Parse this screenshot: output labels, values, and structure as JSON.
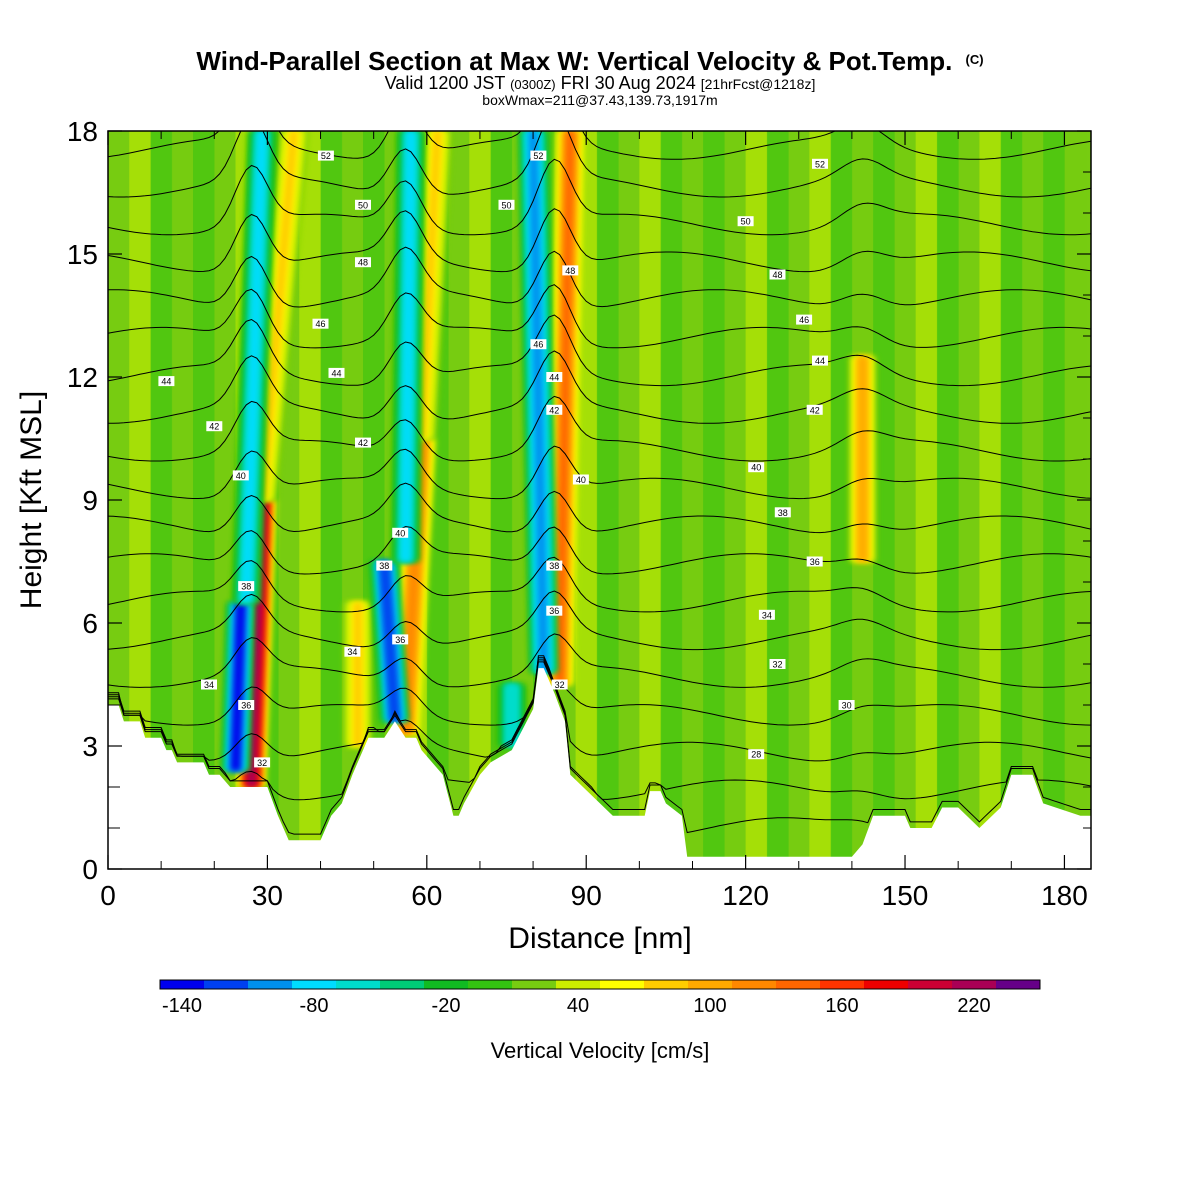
{
  "header": {
    "title": "Wind-Parallel Section at Max W: Vertical Velocity & Pot.Temp.",
    "title_mark": "(C)",
    "subtitle_a": "Valid 1200 JST",
    "subtitle_b": "(0300Z)",
    "subtitle_c": "FRI 30 Aug 2024",
    "subtitle_d": "[21hrFcst@1218z]",
    "info": "boxWmax=211@37.43,139.73,1917m"
  },
  "chart_data": {
    "type": "heatmap",
    "xlabel": "Distance [nm]",
    "ylabel": "Height [Kft MSL]",
    "xlim": [
      0,
      185
    ],
    "ylim": [
      0,
      18
    ],
    "x_ticks": [
      "0",
      "30",
      "60",
      "90",
      "120",
      "150",
      "180"
    ],
    "x_tick_values": [
      0,
      30,
      60,
      90,
      120,
      150,
      180
    ],
    "y_ticks": [
      "0",
      "3",
      "6",
      "9",
      "12",
      "15",
      "18"
    ],
    "y_tick_values": [
      0,
      3,
      6,
      9,
      12,
      15,
      18
    ],
    "colorbar": {
      "label": "Vertical Velocity [cm/s]",
      "tick_labels": [
        "-140",
        "-80",
        "-20",
        "40",
        "100",
        "160",
        "220"
      ],
      "tick_values": [
        -140,
        -80,
        -20,
        40,
        100,
        160,
        220
      ],
      "min": -150,
      "max": 250,
      "colors": [
        "#0000ee",
        "#0040f0",
        "#0090ee",
        "#00ddff",
        "#00ddcc",
        "#00cc77",
        "#11bb22",
        "#33c311",
        "#77cc11",
        "#ccee00",
        "#ffff00",
        "#ffcc00",
        "#ffaa00",
        "#ff8800",
        "#ff6600",
        "#ff3300",
        "#ee0000",
        "#cc0033",
        "#aa0055",
        "#660088"
      ]
    },
    "terrain_kft": [
      [
        0,
        4.0
      ],
      [
        2,
        4.0
      ],
      [
        3,
        3.6
      ],
      [
        6,
        3.6
      ],
      [
        7,
        3.2
      ],
      [
        10,
        3.2
      ],
      [
        11,
        2.9
      ],
      [
        12,
        2.9
      ],
      [
        13,
        2.6
      ],
      [
        18,
        2.6
      ],
      [
        19,
        2.3
      ],
      [
        21,
        2.3
      ],
      [
        23,
        2.0
      ],
      [
        26,
        2.0
      ],
      [
        28,
        2.0
      ],
      [
        30,
        2.0
      ],
      [
        32,
        1.3
      ],
      [
        34,
        0.7
      ],
      [
        40,
        0.7
      ],
      [
        42,
        1.3
      ],
      [
        44,
        1.6
      ],
      [
        46,
        2.3
      ],
      [
        48,
        2.9
      ],
      [
        49,
        3.2
      ],
      [
        52,
        3.2
      ],
      [
        54,
        3.6
      ],
      [
        56,
        3.2
      ],
      [
        58,
        3.2
      ],
      [
        59,
        2.9
      ],
      [
        61,
        2.6
      ],
      [
        63,
        2.3
      ],
      [
        65,
        1.3
      ],
      [
        66,
        1.3
      ],
      [
        67,
        1.6
      ],
      [
        70,
        2.3
      ],
      [
        72,
        2.6
      ],
      [
        76,
        2.9
      ],
      [
        80,
        3.9
      ],
      [
        81,
        4.9
      ],
      [
        82,
        4.9
      ],
      [
        84,
        4.3
      ],
      [
        86,
        3.6
      ],
      [
        87,
        2.3
      ],
      [
        95,
        1.3
      ],
      [
        101,
        1.3
      ],
      [
        102,
        1.9
      ],
      [
        104,
        1.9
      ],
      [
        105,
        1.6
      ],
      [
        108,
        1.3
      ],
      [
        109,
        0.3
      ],
      [
        120,
        0.3
      ],
      [
        140,
        0.3
      ],
      [
        142,
        0.6
      ],
      [
        144,
        1.3
      ],
      [
        150,
        1.3
      ],
      [
        151,
        1.0
      ],
      [
        155,
        1.0
      ],
      [
        157,
        1.5
      ],
      [
        160,
        1.5
      ],
      [
        164,
        1.0
      ],
      [
        168,
        1.5
      ],
      [
        170,
        2.3
      ],
      [
        174,
        2.3
      ],
      [
        176,
        1.6
      ],
      [
        183,
        1.3
      ],
      [
        185,
        1.3
      ]
    ],
    "updrafts": [
      {
        "x": 27,
        "x_top": 29,
        "y0": 2.0,
        "y1": 9.0,
        "peak": 211
      },
      {
        "x": 56,
        "x_top": 59,
        "y0": 3.3,
        "y1": 10.5,
        "peak": 110
      },
      {
        "x": 85,
        "x_top": 87,
        "y0": 4.5,
        "y1": 18,
        "peak": 130
      },
      {
        "x": 142,
        "x_top": 142,
        "y0": 7.5,
        "y1": 12.5,
        "peak": 90
      },
      {
        "x": 47,
        "x_top": 47,
        "y0": 3.0,
        "y1": 6.5,
        "peak": 70
      },
      {
        "x": 29,
        "x_top": 35,
        "y0": 9.0,
        "y1": 18,
        "peak": 70
      },
      {
        "x": 59,
        "x_top": 62,
        "y0": 10.5,
        "y1": 18,
        "peak": 70
      }
    ],
    "downdrafts": [
      {
        "x": 24,
        "x_top": 25,
        "y0": 2.4,
        "y1": 6.5,
        "peak": -140
      },
      {
        "x": 54,
        "x_top": 52,
        "y0": 3.6,
        "y1": 7.5,
        "peak": -130
      },
      {
        "x": 82,
        "x_top": 80,
        "y0": 4.8,
        "y1": 18,
        "peak": -100
      },
      {
        "x": 26,
        "x_top": 29,
        "y0": 6.5,
        "y1": 18,
        "peak": -80
      },
      {
        "x": 56,
        "x_top": 57,
        "y0": 7.5,
        "y1": 18,
        "peak": -80
      },
      {
        "x": 76,
        "x_top": 76,
        "y0": 3.0,
        "y1": 4.5,
        "peak": -70
      }
    ],
    "theta_contours": [
      {
        "value": 28,
        "label": "28",
        "label_at": [
          122,
          2.8
        ]
      },
      {
        "value": 30,
        "label": "30",
        "label_at": [
          139,
          4.0
        ]
      },
      {
        "value": 32,
        "label": "32",
        "label_at": [
          126,
          5.0
        ]
      },
      {
        "value": 32,
        "label": "32",
        "label_at": [
          29,
          2.6
        ]
      },
      {
        "value": 32,
        "label": "32",
        "label_at": [
          85,
          4.5
        ]
      },
      {
        "value": 34,
        "label": "34",
        "label_at": [
          124,
          6.2
        ]
      },
      {
        "value": 34,
        "label": "34",
        "label_at": [
          19,
          4.5
        ]
      },
      {
        "value": 34,
        "label": "34",
        "label_at": [
          46,
          5.3
        ]
      },
      {
        "value": 36,
        "label": "36",
        "label_at": [
          133,
          7.5
        ]
      },
      {
        "value": 36,
        "label": "36",
        "label_at": [
          26,
          4.0
        ]
      },
      {
        "value": 36,
        "label": "36",
        "label_at": [
          55,
          5.6
        ]
      },
      {
        "value": 36,
        "label": "36",
        "label_at": [
          84,
          6.3
        ]
      },
      {
        "value": 38,
        "label": "38",
        "label_at": [
          127,
          8.7
        ]
      },
      {
        "value": 38,
        "label": "38",
        "label_at": [
          26,
          6.9
        ]
      },
      {
        "value": 38,
        "label": "38",
        "label_at": [
          52,
          7.4
        ]
      },
      {
        "value": 38,
        "label": "38",
        "label_at": [
          84,
          7.4
        ]
      },
      {
        "value": 40,
        "label": "40",
        "label_at": [
          122,
          9.8
        ]
      },
      {
        "value": 40,
        "label": "40",
        "label_at": [
          25,
          9.6
        ]
      },
      {
        "value": 40,
        "label": "40",
        "label_at": [
          55,
          8.2
        ]
      },
      {
        "value": 40,
        "label": "40",
        "label_at": [
          89,
          9.5
        ]
      },
      {
        "value": 42,
        "label": "42",
        "label_at": [
          133,
          11.2
        ]
      },
      {
        "value": 42,
        "label": "42",
        "label_at": [
          20,
          10.8
        ]
      },
      {
        "value": 42,
        "label": "42",
        "label_at": [
          48,
          10.4
        ]
      },
      {
        "value": 42,
        "label": "42",
        "label_at": [
          84,
          11.2
        ]
      },
      {
        "value": 44,
        "label": "44",
        "label_at": [
          134,
          12.4
        ]
      },
      {
        "value": 44,
        "label": "44",
        "label_at": [
          11,
          11.9
        ]
      },
      {
        "value": 44,
        "label": "44",
        "label_at": [
          43,
          12.1
        ]
      },
      {
        "value": 44,
        "label": "44",
        "label_at": [
          84,
          12.0
        ]
      },
      {
        "value": 46,
        "label": "46",
        "label_at": [
          131,
          13.4
        ]
      },
      {
        "value": 46,
        "label": "46",
        "label_at": [
          40,
          13.3
        ]
      },
      {
        "value": 46,
        "label": "46",
        "label_at": [
          81,
          12.8
        ]
      },
      {
        "value": 48,
        "label": "48",
        "label_at": [
          126,
          14.5
        ]
      },
      {
        "value": 48,
        "label": "48",
        "label_at": [
          48,
          14.8
        ]
      },
      {
        "value": 48,
        "label": "48",
        "label_at": [
          87,
          14.6
        ]
      },
      {
        "value": 50,
        "label": "50",
        "label_at": [
          120,
          15.8
        ]
      },
      {
        "value": 50,
        "label": "50",
        "label_at": [
          48,
          16.2
        ]
      },
      {
        "value": 50,
        "label": "50",
        "label_at": [
          75,
          16.2
        ]
      },
      {
        "value": 52,
        "label": "52",
        "label_at": [
          134,
          17.2
        ]
      },
      {
        "value": 52,
        "label": "52",
        "label_at": [
          41,
          17.4
        ]
      },
      {
        "value": 52,
        "label": "52",
        "label_at": [
          81,
          17.4
        ]
      }
    ]
  }
}
